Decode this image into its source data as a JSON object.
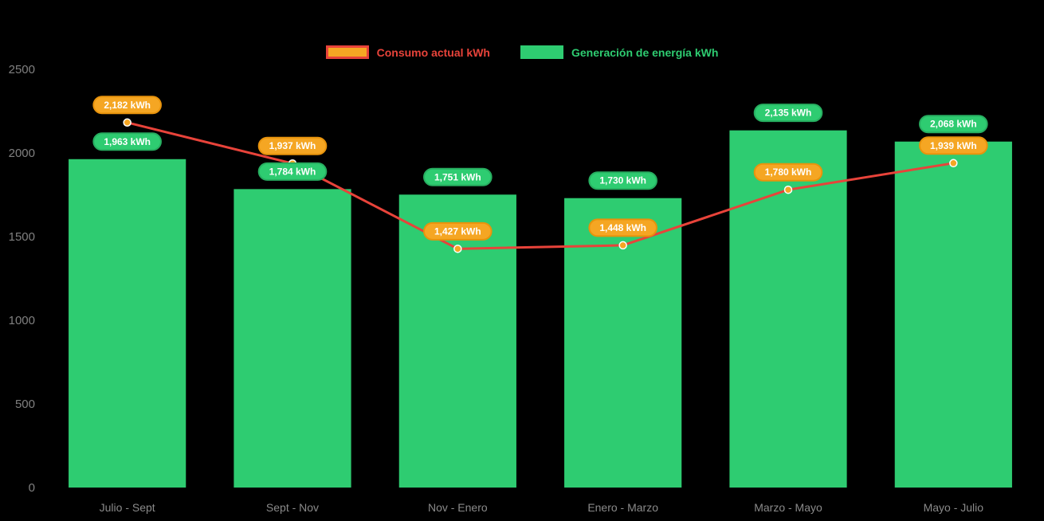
{
  "chart_data": {
    "type": "bar",
    "subtype": "bar+line combo",
    "categories": [
      "Julio - Sept",
      "Sept - Nov",
      "Nov - Enero",
      "Enero - Marzo",
      "Marzo - Mayo",
      "Mayo - Julio"
    ],
    "series": [
      {
        "name": "Consumo actual kWh",
        "type": "line",
        "values": [
          2182,
          1937,
          1427,
          1448,
          1780,
          1939
        ],
        "labels": [
          "2,182 kWh",
          "1,937 kWh",
          "1,427 kWh",
          "1,448 kWh",
          "1,780 kWh",
          "1,939 kWh"
        ],
        "line_color": "#E8433A",
        "point_color": "#F5A623",
        "badge_fill": "#F5A623",
        "badge_border": "#E8930C"
      },
      {
        "name": "Generación de energía kWh",
        "type": "bar",
        "values": [
          1963,
          1784,
          1751,
          1730,
          2135,
          2068
        ],
        "labels": [
          "1,963 kWh",
          "1,784 kWh",
          "1,751 kWh",
          "1,730 kWh",
          "2,135 kWh",
          "2,068 kWh"
        ],
        "bar_color": "#2ECC71",
        "badge_fill": "#2ECC71",
        "badge_border": "#27AE60"
      }
    ],
    "y_ticks": [
      2500,
      2000,
      1500,
      1000,
      500,
      0
    ],
    "ylim": [
      0,
      2500
    ],
    "grid": false,
    "legend_position": "top",
    "axis_label_color": "#808080",
    "background": "#000000",
    "title": "",
    "xlabel": "",
    "ylabel": ""
  }
}
